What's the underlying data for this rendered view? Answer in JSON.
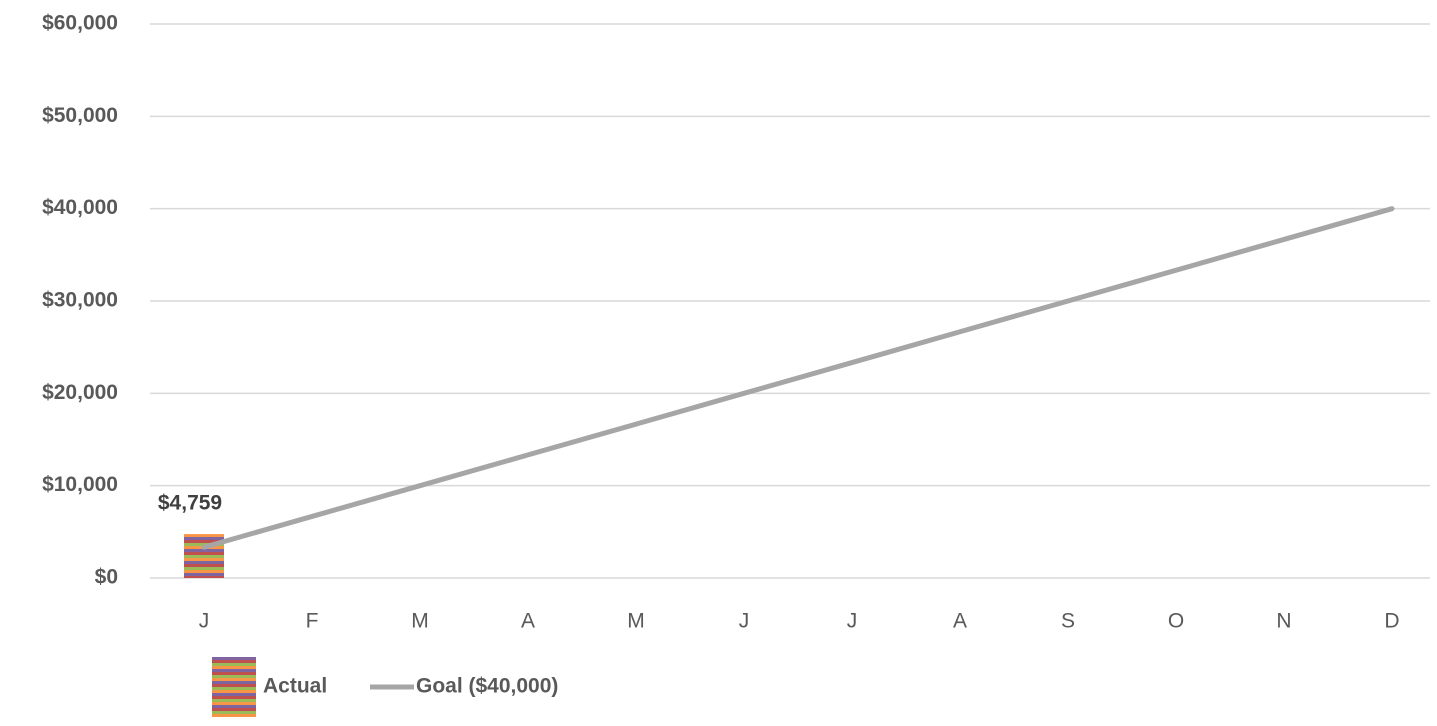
{
  "chart_data": {
    "type": "line",
    "categories": [
      "J",
      "F",
      "M",
      "A",
      "M",
      "J",
      "J",
      "A",
      "S",
      "O",
      "N",
      "D"
    ],
    "series": [
      {
        "name": "Actual",
        "type": "bar",
        "values": [
          4759,
          null,
          null,
          null,
          null,
          null,
          null,
          null,
          null,
          null,
          null,
          null
        ],
        "value_labels": [
          "$4,759",
          null,
          null,
          null,
          null,
          null,
          null,
          null,
          null,
          null,
          null,
          null
        ]
      },
      {
        "name": "Goal ($40,000)",
        "type": "line",
        "color": "#a6a6a6",
        "values": [
          3333,
          6667,
          10000,
          13333,
          16667,
          20000,
          23333,
          26667,
          30000,
          33333,
          36667,
          40000
        ]
      }
    ],
    "ylim": [
      0,
      60000
    ],
    "yticks": [
      {
        "value": 0,
        "label": "$0"
      },
      {
        "value": 10000,
        "label": "$10,000"
      },
      {
        "value": 20000,
        "label": "$20,000"
      },
      {
        "value": 30000,
        "label": "$30,000"
      },
      {
        "value": 40000,
        "label": "$40,000"
      },
      {
        "value": 50000,
        "label": "$50,000"
      },
      {
        "value": 60000,
        "label": "$60,000"
      }
    ],
    "grid": true,
    "legend": "bottom"
  }
}
